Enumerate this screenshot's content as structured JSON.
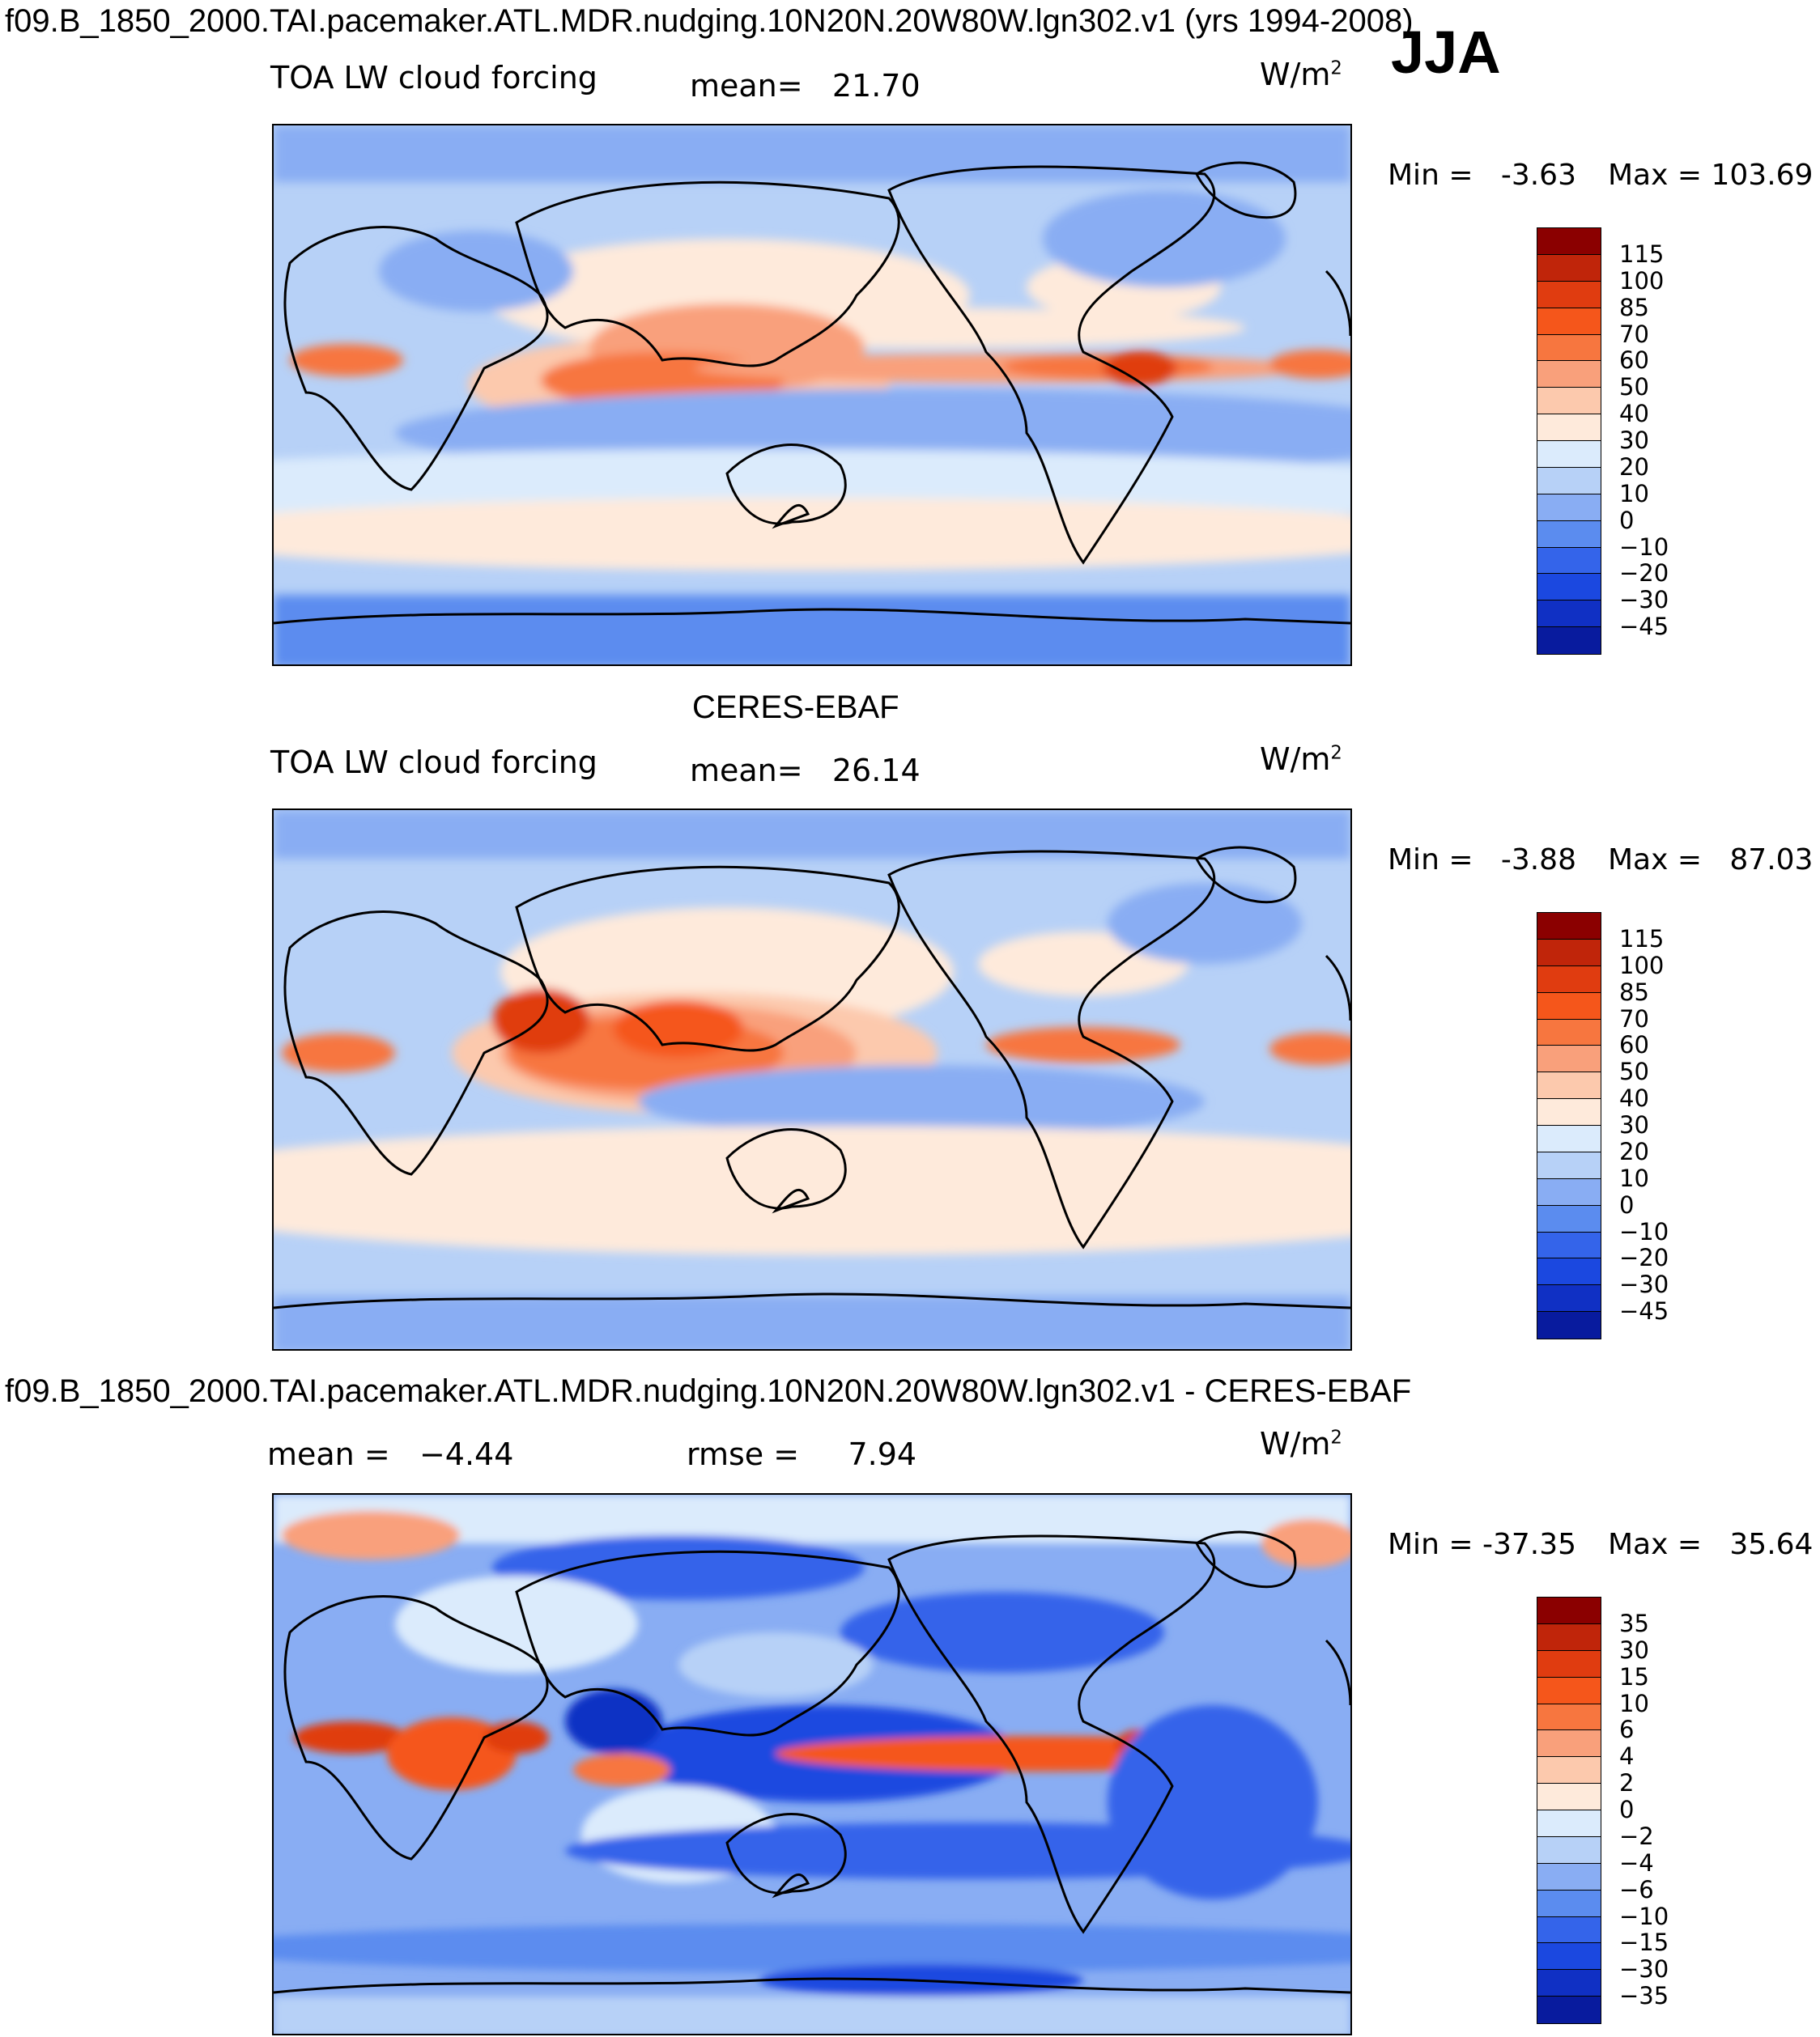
{
  "header": {
    "title": "f09.B_1850_2000.TAI.pacemaker.ATL.MDR.nudging.10N20N.20W80W.lgn302.v1 (yrs 1994-2008)",
    "season": "JJA"
  },
  "panels": [
    {
      "center_title": "",
      "left_string": "TOA LW cloud forcing",
      "mean_label": "mean=",
      "mean_value": "21.70",
      "units": "W/m",
      "units_exp": "2",
      "min_label": "Min =",
      "min_value": "-3.63",
      "max_label": "Max =",
      "max_value": "103.69",
      "colorbar": {
        "labels": [
          "115",
          "100",
          "85",
          "70",
          "60",
          "50",
          "40",
          "30",
          "20",
          "10",
          "0",
          "−10",
          "−20",
          "−30",
          "−45"
        ],
        "colors": [
          "#8b0000",
          "#c0250a",
          "#e03c10",
          "#f5561b",
          "#f7763f",
          "#f9a07b",
          "#fcc9ad",
          "#feeadb",
          "#dbebfc",
          "#b7d1f7",
          "#89adf3",
          "#5b8cef",
          "#3464ea",
          "#1b48e0",
          "#1030c4",
          "#081b9e"
        ]
      }
    },
    {
      "center_title": "CERES-EBAF",
      "left_string": "TOA LW cloud forcing",
      "mean_label": "mean=",
      "mean_value": "26.14",
      "units": "W/m",
      "units_exp": "2",
      "min_label": "Min =",
      "min_value": "-3.88",
      "max_label": "Max =",
      "max_value": "87.03",
      "colorbar": {
        "labels": [
          "115",
          "100",
          "85",
          "70",
          "60",
          "50",
          "40",
          "30",
          "20",
          "10",
          "0",
          "−10",
          "−20",
          "−30",
          "−45"
        ],
        "colors": [
          "#8b0000",
          "#c0250a",
          "#e03c10",
          "#f5561b",
          "#f7763f",
          "#f9a07b",
          "#fcc9ad",
          "#feeadb",
          "#dbebfc",
          "#b7d1f7",
          "#89adf3",
          "#5b8cef",
          "#3464ea",
          "#1b48e0",
          "#1030c4",
          "#081b9e"
        ]
      }
    },
    {
      "center_title": "f09.B_1850_2000.TAI.pacemaker.ATL.MDR.nudging.10N20N.20W80W.lgn302.v1 - CERES-EBAF",
      "left_string": "mean =",
      "left_value": "−4.44",
      "mean_label": "rmse =",
      "mean_value": "7.94",
      "units": "W/m",
      "units_exp": "2",
      "min_label": "Min =",
      "min_value": "-37.35",
      "max_label": "Max =",
      "max_value": "35.64",
      "colorbar": {
        "labels": [
          "35",
          "30",
          "15",
          "10",
          "6",
          "4",
          "2",
          "0",
          "−2",
          "−4",
          "−6",
          "−10",
          "−15",
          "−30",
          "−35"
        ],
        "colors": [
          "#8b0000",
          "#c0250a",
          "#e03c10",
          "#f5561b",
          "#f7763f",
          "#f9a07b",
          "#fcc9ad",
          "#feeadb",
          "#dbebfc",
          "#b7d1f7",
          "#89adf3",
          "#5b8cef",
          "#3464ea",
          "#1b48e0",
          "#1030c4",
          "#081b9e"
        ]
      }
    }
  ]
}
